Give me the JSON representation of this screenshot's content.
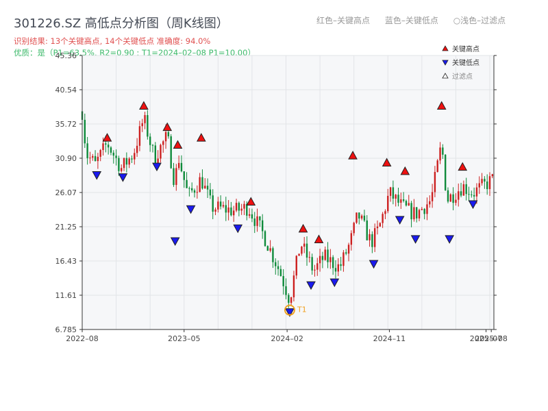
{
  "header": {
    "title": "301226.SZ 高低点分析图（周K线图）",
    "legend_red": "红色–关键高点",
    "legend_blue": "蓝色–关键低点",
    "legend_filtered": "○浅色–过滤点",
    "result_text": "识别结果: 13个关键高点, 14个关键低点   准确度: 94.0%",
    "quality_text": "优质：是（P1=63.5%, R2=0.90 ; T1=2024–02–08 P1=10.00）"
  },
  "colors": {
    "up": "#cc1f1f",
    "down": "#0e8a3a",
    "high_marker": "#ee1111",
    "low_marker": "#1a1aee",
    "annotation": "#f0a020",
    "plot_bg": "#f6f7f9"
  },
  "chart_data": {
    "type": "candlestick",
    "x_axis": {
      "start": "2022-08-01",
      "end": "2025-08-08",
      "ticks": [
        {
          "date": "2022-08-01",
          "label": "2022–08"
        },
        {
          "date": "2023-05-01",
          "label": "2023–05"
        },
        {
          "date": "2024-02-01",
          "label": "2024–02"
        },
        {
          "date": "2024-11-01",
          "label": "2024–11"
        },
        {
          "date": "2025-07-18",
          "label": "2025–07"
        },
        {
          "date": "2025-08-01",
          "label": "2025–08"
        }
      ]
    },
    "y_axis": {
      "min": 6.785,
      "max": 45.36,
      "ticks": [
        6.785,
        11.61,
        16.43,
        21.25,
        26.07,
        30.9,
        35.72,
        40.54,
        45.36
      ],
      "tick_labels": [
        "6.785",
        "11.61",
        "16.43",
        "21.25",
        "26.07",
        "30.90",
        "35.72",
        "40.54",
        "45.36"
      ]
    },
    "grid": true,
    "legend": {
      "position": "top-right",
      "entries": [
        {
          "name": "关键高点",
          "kind": "high"
        },
        {
          "name": "关键低点",
          "kind": "low"
        },
        {
          "name": "过滤点",
          "kind": "filtered"
        }
      ]
    },
    "anchor_prices": [
      [
        "2022-08-01",
        37.5
      ],
      [
        "2022-08-12",
        31.5
      ],
      [
        "2022-09-05",
        30.0
      ],
      [
        "2022-10-07",
        33.0
      ],
      [
        "2022-11-14",
        29.5
      ],
      [
        "2022-12-16",
        31.5
      ],
      [
        "2023-01-13",
        36.5
      ],
      [
        "2023-02-10",
        31.0
      ],
      [
        "2023-03-17",
        34.0
      ],
      [
        "2023-04-07",
        27.0
      ],
      [
        "2023-04-14",
        31.5
      ],
      [
        "2023-05-12",
        25.5
      ],
      [
        "2023-06-16",
        28.0
      ],
      [
        "2023-07-14",
        24.0
      ],
      [
        "2023-09-15",
        23.5
      ],
      [
        "2023-10-20",
        24.0
      ],
      [
        "2023-12-01",
        20.0
      ],
      [
        "2024-01-12",
        15.0
      ],
      [
        "2024-02-08",
        11.0
      ],
      [
        "2024-03-08",
        19.0
      ],
      [
        "2024-04-12",
        15.0
      ],
      [
        "2024-05-10",
        17.0
      ],
      [
        "2024-06-21",
        15.5
      ],
      [
        "2024-07-19",
        19.0
      ],
      [
        "2024-08-09",
        23.0
      ],
      [
        "2024-09-13",
        19.0
      ],
      [
        "2024-10-04",
        21.0
      ],
      [
        "2024-11-01",
        26.0
      ],
      [
        "2024-12-06",
        24.0
      ],
      [
        "2025-01-10",
        23.0
      ],
      [
        "2025-02-21",
        25.0
      ],
      [
        "2025-03-21",
        33.0
      ],
      [
        "2025-04-04",
        25.0
      ],
      [
        "2025-05-16",
        27.0
      ],
      [
        "2025-06-13",
        26.0
      ],
      [
        "2025-08-08",
        28.0
      ]
    ],
    "key_highs": [
      {
        "date": "2022-10-07",
        "price": 33.0
      },
      {
        "date": "2023-01-13",
        "price": 37.5
      },
      {
        "date": "2023-03-17",
        "price": 34.5
      },
      {
        "date": "2023-04-14",
        "price": 32.0
      },
      {
        "date": "2023-06-16",
        "price": 33.0
      },
      {
        "date": "2023-10-27",
        "price": 24.0
      },
      {
        "date": "2024-03-15",
        "price": 20.2
      },
      {
        "date": "2024-04-26",
        "price": 18.7
      },
      {
        "date": "2024-07-26",
        "price": 30.5
      },
      {
        "date": "2024-10-25",
        "price": 29.5
      },
      {
        "date": "2024-12-13",
        "price": 28.3
      },
      {
        "date": "2025-03-21",
        "price": 37.5
      },
      {
        "date": "2025-05-16",
        "price": 28.9
      }
    ],
    "key_lows": [
      {
        "date": "2022-09-09",
        "price": 29.3
      },
      {
        "date": "2022-11-18",
        "price": 29.0
      },
      {
        "date": "2023-02-17",
        "price": 30.5
      },
      {
        "date": "2023-04-07",
        "price": 20.0
      },
      {
        "date": "2023-05-19",
        "price": 24.5
      },
      {
        "date": "2023-09-22",
        "price": 21.8
      },
      {
        "date": "2024-02-08",
        "price": 10.0
      },
      {
        "date": "2024-04-05",
        "price": 13.8
      },
      {
        "date": "2024-06-07",
        "price": 14.2
      },
      {
        "date": "2024-09-20",
        "price": 16.8
      },
      {
        "date": "2024-11-29",
        "price": 23.0
      },
      {
        "date": "2025-01-10",
        "price": 20.3
      },
      {
        "date": "2025-04-11",
        "price": 20.3
      },
      {
        "date": "2025-06-13",
        "price": 25.2
      }
    ],
    "annotations": [
      {
        "date": "2024-02-08",
        "price": 10.0,
        "label": "T1"
      }
    ]
  }
}
